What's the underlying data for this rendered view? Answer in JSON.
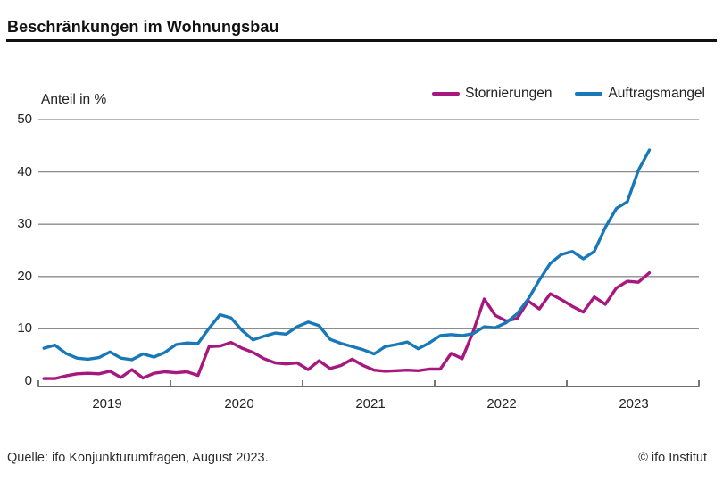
{
  "header": {
    "title": "Beschränkungen im Wohnungsbau"
  },
  "chart": {
    "unit_label": "Anteil in %"
  },
  "chart_data": {
    "type": "line",
    "title": "Beschränkungen im Wohnungsbau",
    "ylabel": "Anteil in %",
    "ylim": [
      0,
      50
    ],
    "yticks": [
      0,
      10,
      20,
      30,
      40,
      50
    ],
    "x_unit": "month",
    "x_start": "2019-01",
    "x_end": "2023-08",
    "xticklabels": [
      "2019",
      "2020",
      "2021",
      "2022",
      "2023"
    ],
    "grid": "horizontal",
    "legend_position": "top-right",
    "colors": {
      "stornierungen": "#a6187e",
      "auftragsmangel": "#1878b8"
    },
    "series": [
      {
        "name": "Stornierungen",
        "color": "#a6187e",
        "values": [
          0.5,
          0.5,
          1.0,
          1.4,
          1.5,
          1.4,
          1.9,
          0.7,
          2.2,
          0.6,
          1.5,
          1.8,
          1.6,
          1.8,
          1.1,
          6.6,
          6.7,
          7.4,
          6.3,
          5.5,
          4.3,
          3.5,
          3.3,
          3.5,
          2.2,
          3.9,
          2.4,
          3.0,
          4.2,
          3.0,
          2.1,
          1.9,
          2.0,
          2.1,
          2.0,
          2.3,
          2.3,
          5.3,
          4.3,
          9.5,
          15.7,
          12.6,
          11.5,
          12.0,
          15.3,
          13.8,
          16.7,
          15.6,
          14.3,
          13.2,
          16.1,
          14.7,
          17.8,
          19.1,
          18.9,
          20.7
        ]
      },
      {
        "name": "Auftragsmangel",
        "color": "#1878b8",
        "values": [
          6.3,
          6.9,
          5.3,
          4.4,
          4.2,
          4.5,
          5.6,
          4.4,
          4.1,
          5.2,
          4.6,
          5.5,
          7.0,
          7.3,
          7.2,
          10.1,
          12.7,
          12.1,
          9.7,
          7.9,
          8.6,
          9.2,
          9.0,
          10.4,
          11.3,
          10.6,
          8.0,
          7.2,
          6.6,
          6.0,
          5.2,
          6.6,
          7.0,
          7.5,
          6.2,
          7.3,
          8.7,
          8.9,
          8.7,
          9.1,
          10.4,
          10.2,
          11.2,
          12.9,
          15.7,
          19.3,
          22.5,
          24.2,
          24.8,
          23.4,
          24.8,
          29.4,
          33.0,
          34.3,
          40.3,
          44.2
        ]
      }
    ]
  },
  "footer": {
    "source": "Quelle: ifo Konjunkturumfragen, August 2023.",
    "copyright": "© ifo Institut"
  }
}
